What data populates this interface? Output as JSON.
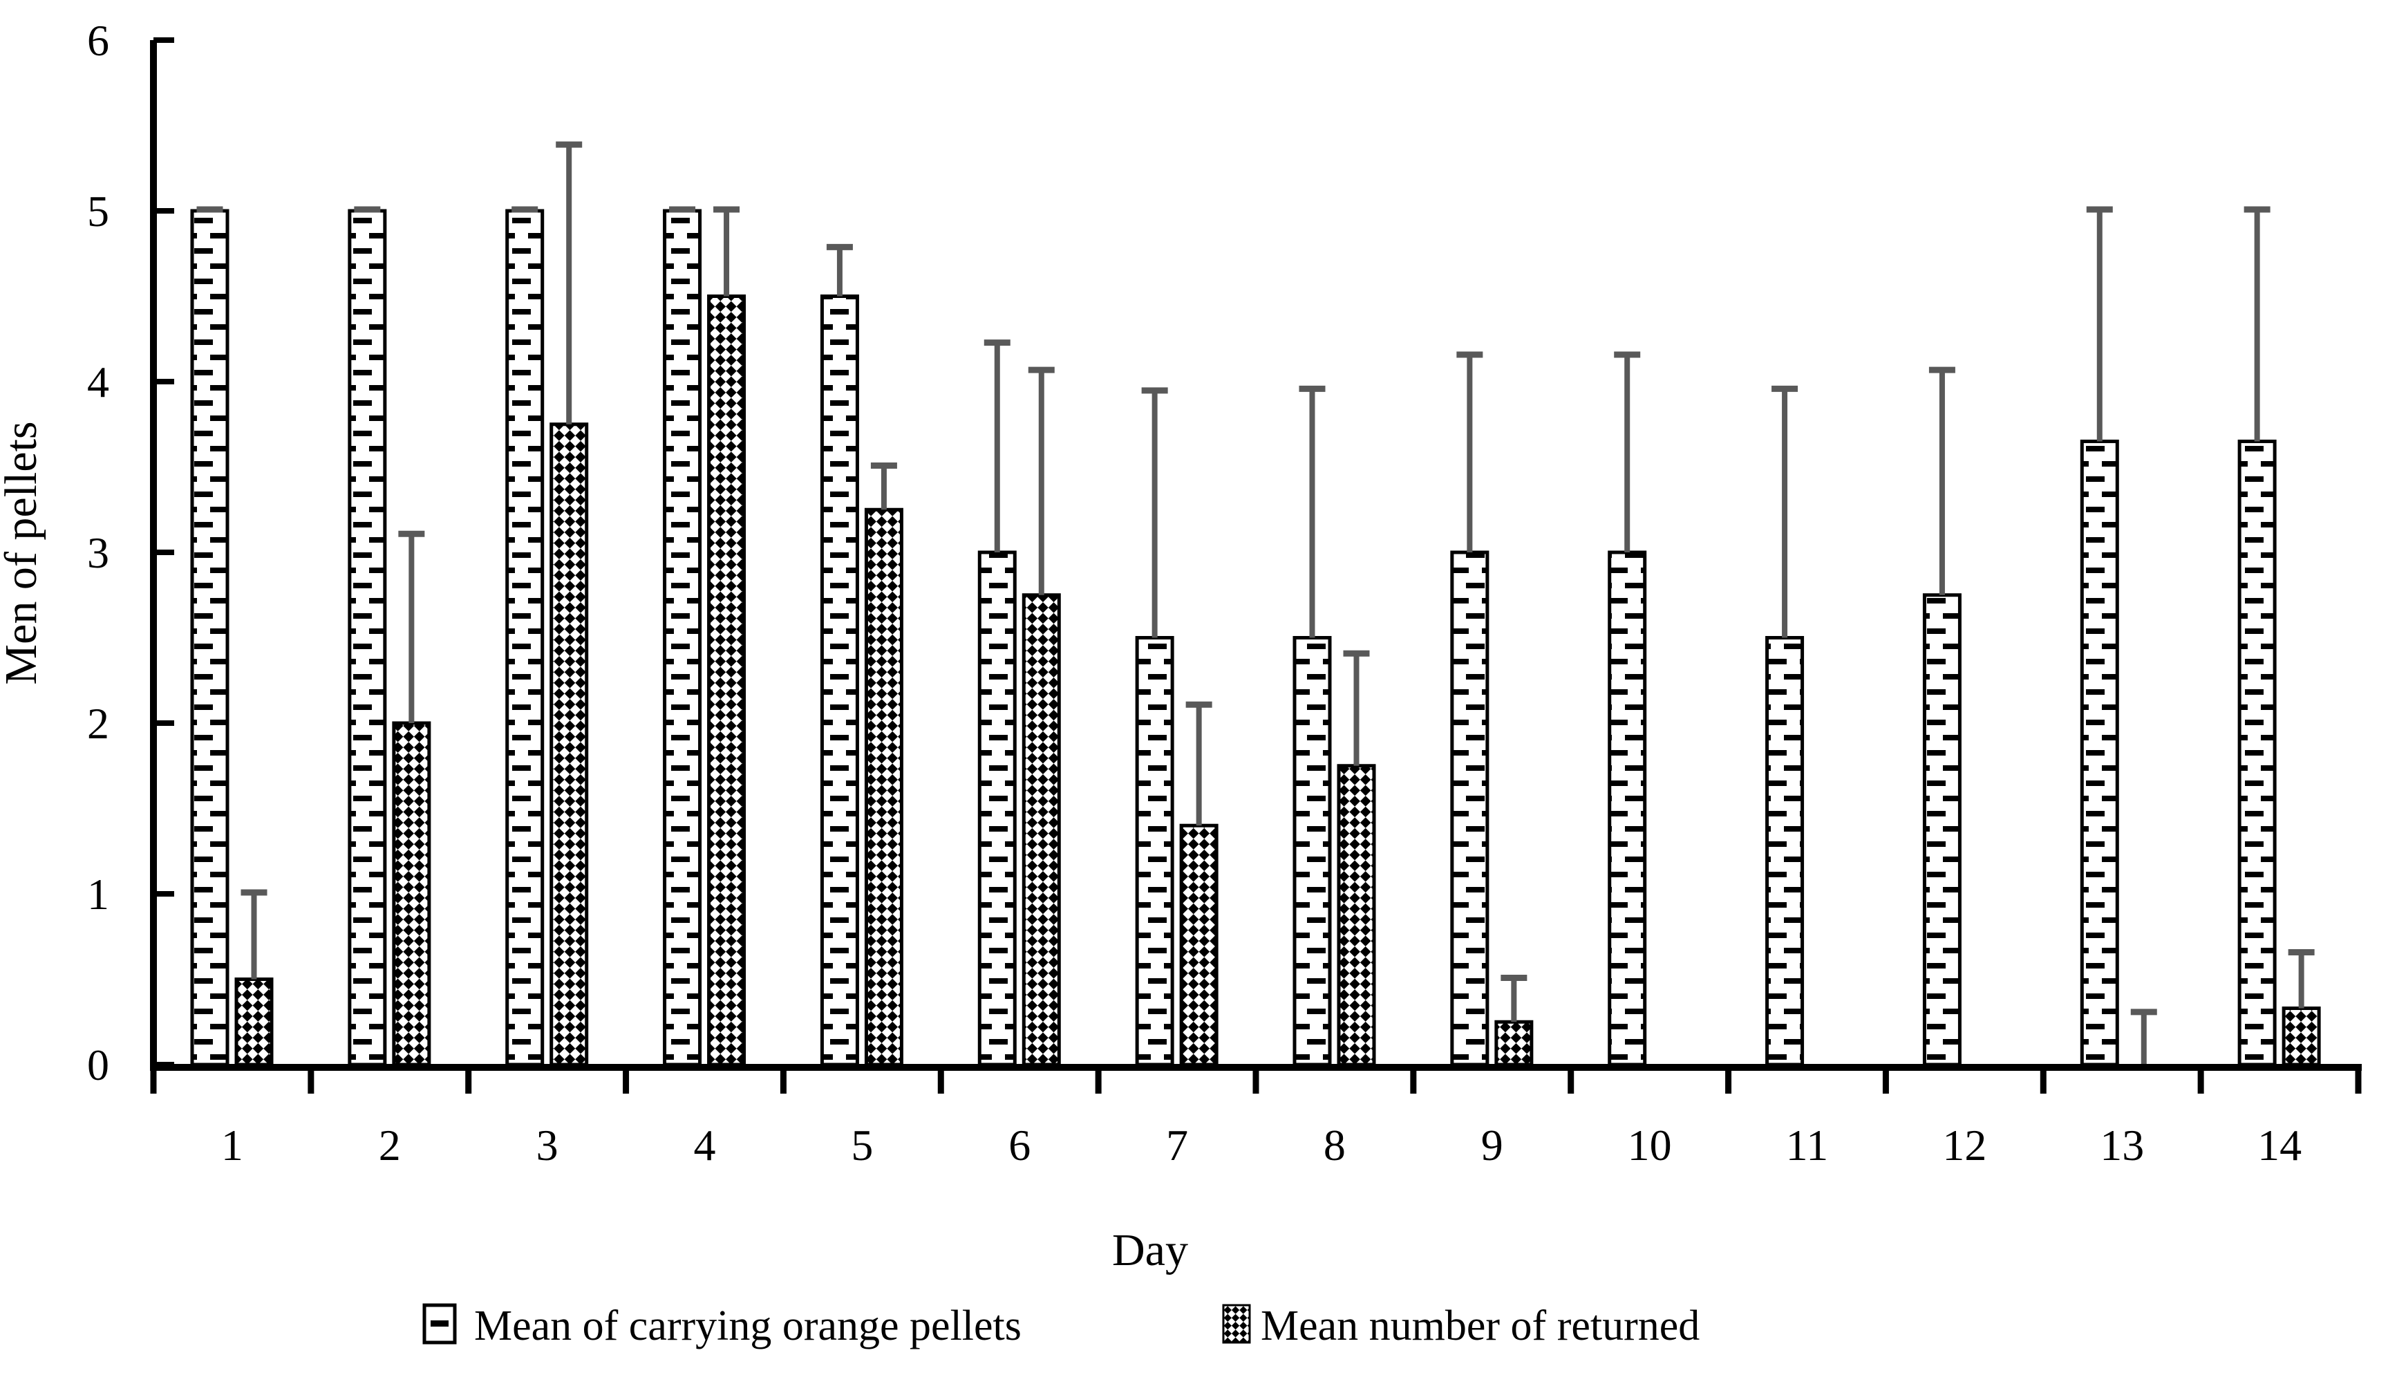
{
  "chart_data": {
    "type": "bar",
    "title": "",
    "xlabel": "Day",
    "ylabel": "Men of pellets",
    "ylim": [
      0,
      6
    ],
    "yticks": [
      "0",
      "1",
      "2",
      "3",
      "4",
      "5",
      "6"
    ],
    "categories": [
      "1",
      "2",
      "3",
      "4",
      "5",
      "6",
      "7",
      "8",
      "9",
      "10",
      "11",
      "12",
      "13",
      "14"
    ],
    "grid": false,
    "legend_position": "bottom",
    "colors": {
      "background": "#ffffff",
      "axis": "#000000",
      "bar_border": "#000000",
      "pattern_foreground": "#000000",
      "pattern_background": "#ffffff",
      "error_bar": "#595959"
    },
    "series": [
      {
        "name": "Mean of carrying orange pellets",
        "pattern": "horizontal-dashes",
        "values": [
          5,
          5,
          5,
          5,
          4.5,
          3,
          2.5,
          2.5,
          3,
          3,
          2.5,
          2.75,
          3.65,
          3.65
        ],
        "error_top": [
          5,
          5,
          5,
          5,
          4.78,
          4.22,
          3.94,
          3.95,
          4.15,
          4.15,
          3.95,
          4.06,
          5,
          5
        ]
      },
      {
        "name": "Mean number of returned",
        "pattern": "diagonal-checkerboard",
        "values": [
          0.5,
          2,
          3.75,
          4.5,
          3.25,
          2.75,
          1.4,
          1.75,
          0.25,
          0,
          0,
          0,
          0,
          0.33
        ],
        "error_top": [
          1,
          3.1,
          5.38,
          5,
          3.5,
          4.06,
          2.1,
          2.4,
          0.5,
          null,
          null,
          null,
          0.3,
          0.65
        ]
      }
    ]
  }
}
